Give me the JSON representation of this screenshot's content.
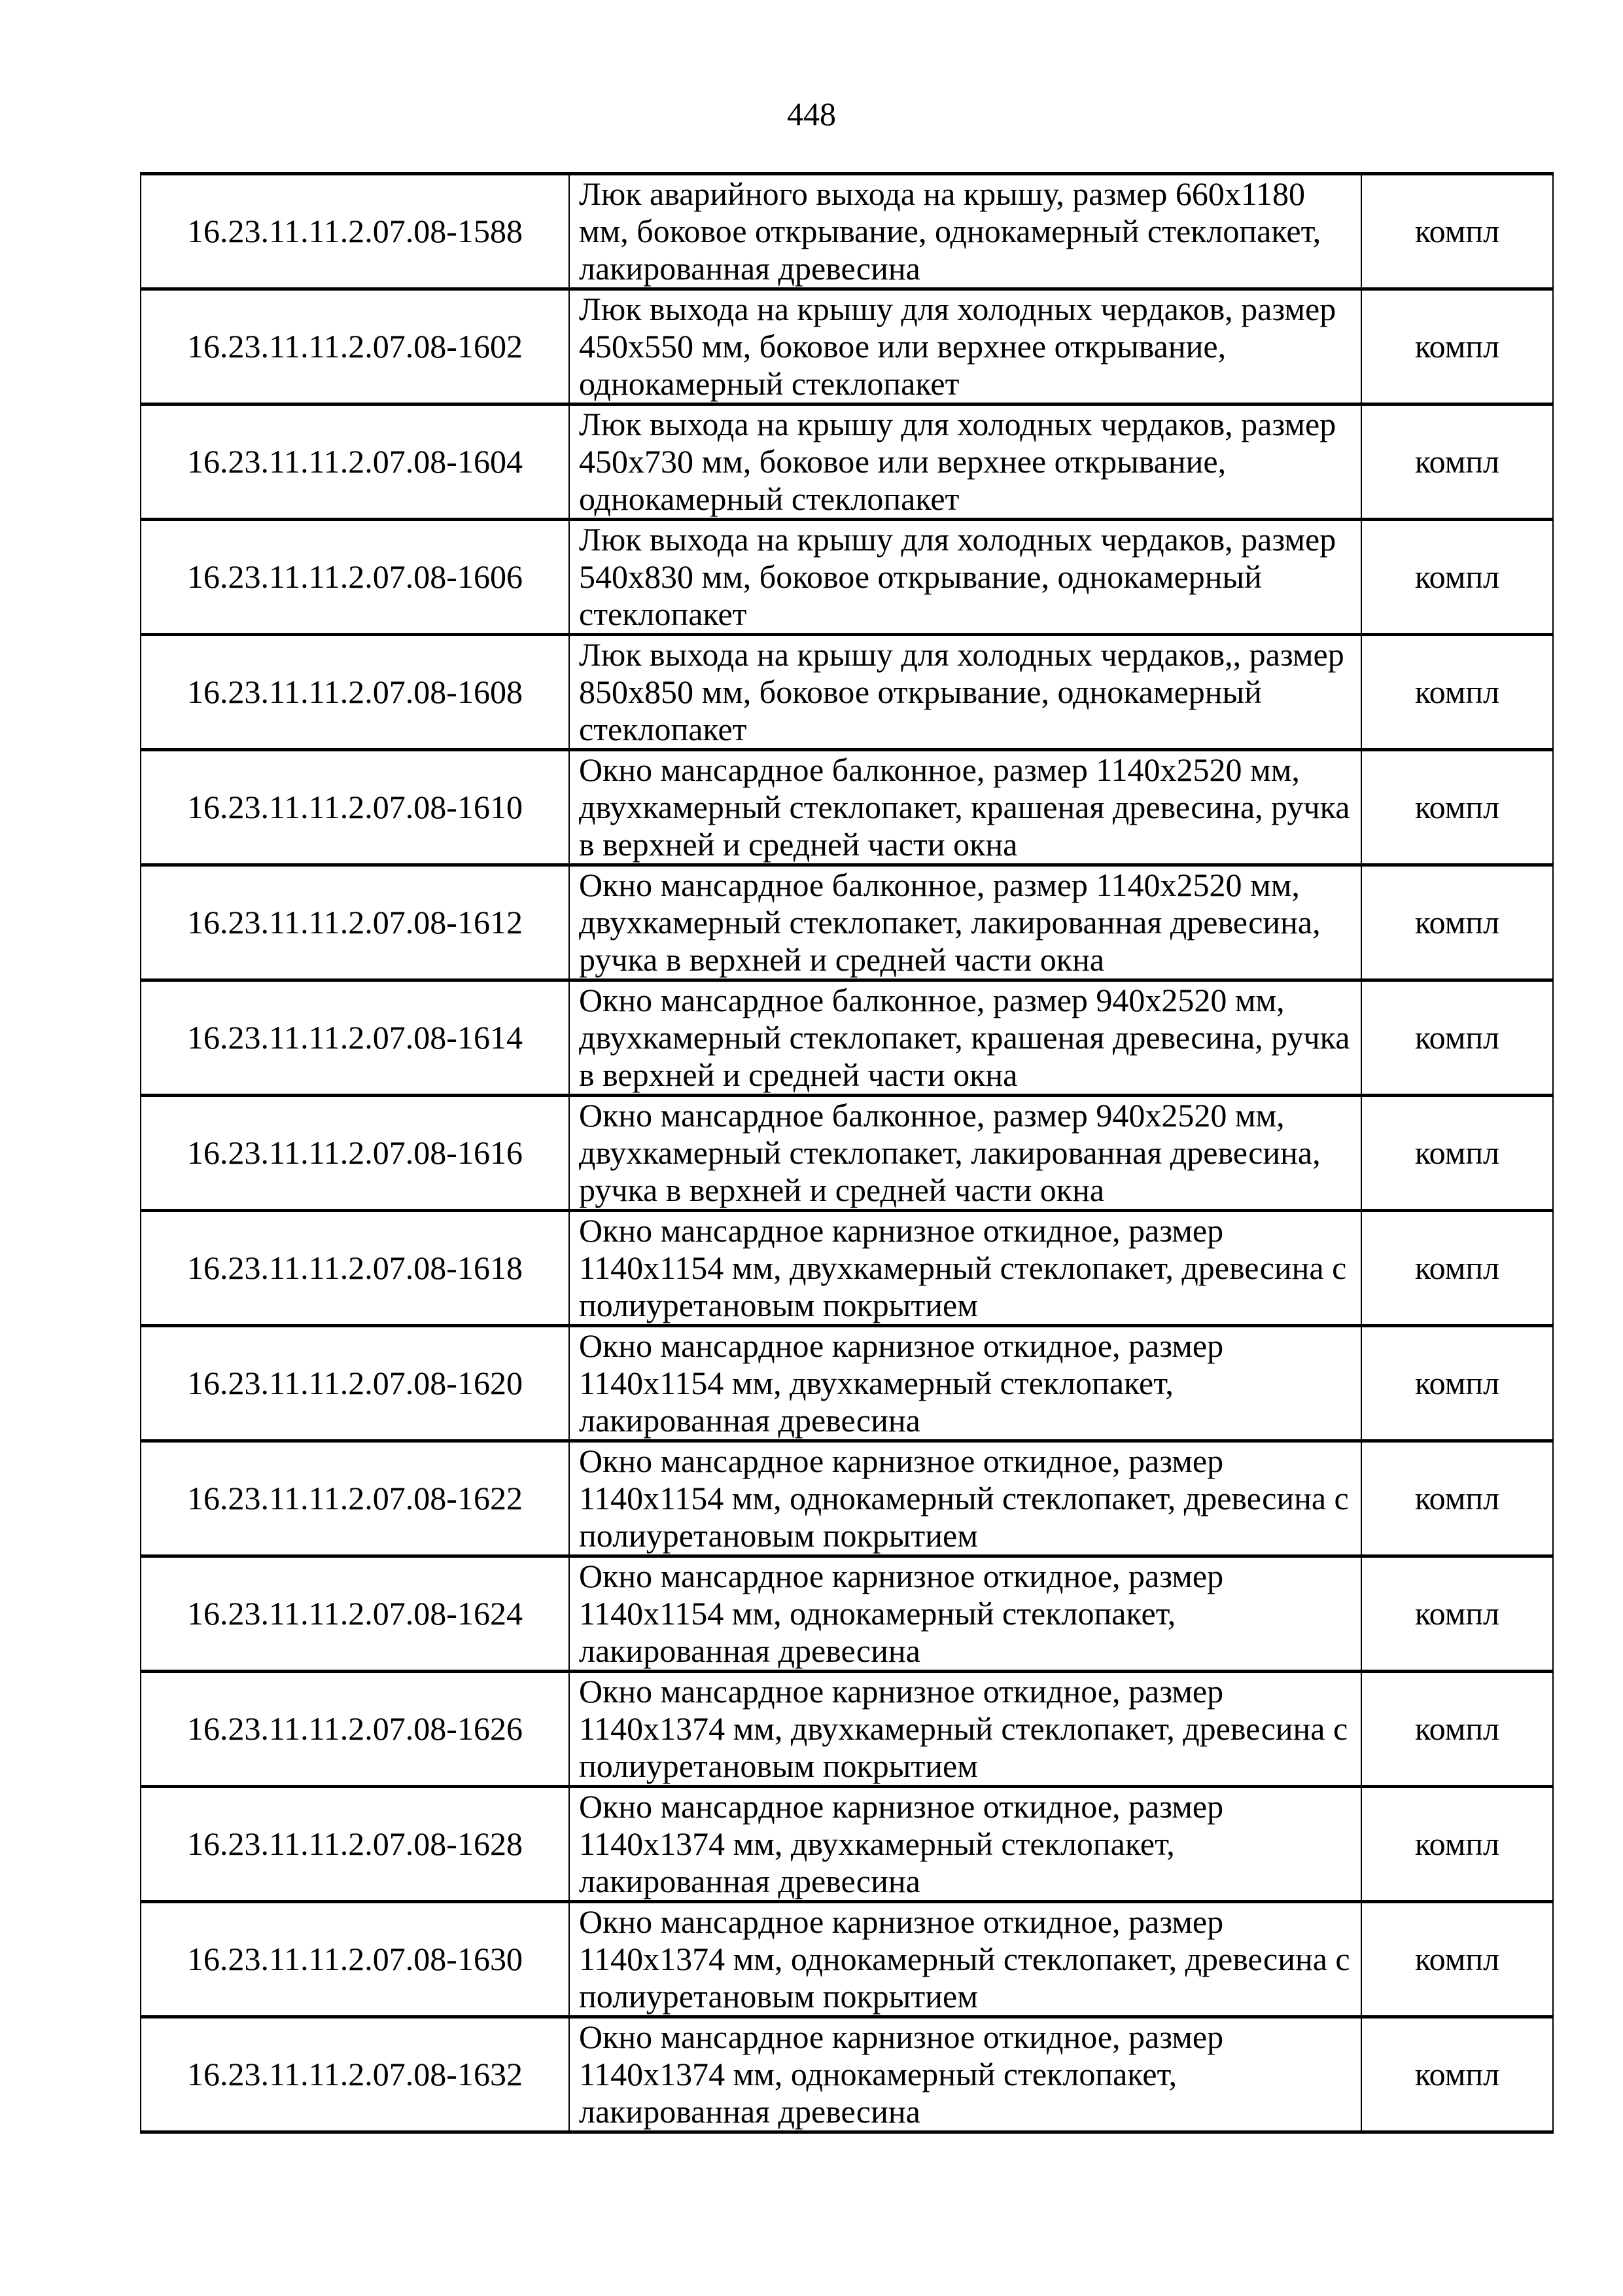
{
  "page_number": "448",
  "rows": [
    {
      "code": "16.23.11.11.2.07.08-1588",
      "desc": "Люк аварийного выхода на крышу, размер 660х1180 мм, боковое открывание, однокамерный стеклопакет, лакированная древесина",
      "unit": "компл"
    },
    {
      "code": "16.23.11.11.2.07.08-1602",
      "desc": "Люк выхода на крышу для холодных чердаков, размер 450х550 мм, боковое или верхнее открывание, однокамерный стеклопакет",
      "unit": "компл"
    },
    {
      "code": "16.23.11.11.2.07.08-1604",
      "desc": "Люк выхода на крышу для холодных чердаков, размер 450х730 мм, боковое или верхнее открывание, однокамерный стеклопакет",
      "unit": "компл"
    },
    {
      "code": "16.23.11.11.2.07.08-1606",
      "desc": "Люк выхода на крышу для холодных чердаков, размер 540х830 мм, боковое открывание, однокамерный стеклопакет",
      "unit": "компл"
    },
    {
      "code": "16.23.11.11.2.07.08-1608",
      "desc": "Люк выхода на крышу для холодных чердаков,, размер 850х850 мм, боковое открывание, однокамерный стеклопакет",
      "unit": "компл"
    },
    {
      "code": "16.23.11.11.2.07.08-1610",
      "desc": "Окно мансардное балконное, размер 1140х2520 мм, двухкамерный стеклопакет, крашеная древесина, ручка в верхней и средней части окна",
      "unit": "компл"
    },
    {
      "code": "16.23.11.11.2.07.08-1612",
      "desc": "Окно мансардное балконное, размер 1140х2520 мм, двухкамерный стеклопакет, лакированная древесина, ручка в верхней и средней части окна",
      "unit": "компл"
    },
    {
      "code": "16.23.11.11.2.07.08-1614",
      "desc": "Окно мансардное балконное, размер 940х2520 мм, двухкамерный стеклопакет, крашеная древесина, ручка в верхней и средней части окна",
      "unit": "компл"
    },
    {
      "code": "16.23.11.11.2.07.08-1616",
      "desc": "Окно мансардное балконное, размер 940х2520 мм, двухкамерный стеклопакет, лакированная древесина, ручка в верхней и средней части окна",
      "unit": "компл"
    },
    {
      "code": "16.23.11.11.2.07.08-1618",
      "desc": "Окно мансардное карнизное откидное, размер 1140х1154 мм, двухкамерный стеклопакет, древесина с полиуретановым покрытием",
      "unit": "компл"
    },
    {
      "code": "16.23.11.11.2.07.08-1620",
      "desc": "Окно мансардное карнизное откидное, размер 1140х1154 мм, двухкамерный стеклопакет, лакированная древесина",
      "unit": "компл"
    },
    {
      "code": "16.23.11.11.2.07.08-1622",
      "desc": "Окно мансардное карнизное откидное, размер 1140х1154 мм, однокамерный стеклопакет, древесина с полиуретановым покрытием",
      "unit": "компл"
    },
    {
      "code": "16.23.11.11.2.07.08-1624",
      "desc": "Окно мансардное карнизное откидное, размер 1140х1154 мм, однокамерный стеклопакет, лакированная древесина",
      "unit": "компл"
    },
    {
      "code": "16.23.11.11.2.07.08-1626",
      "desc": "Окно мансардное карнизное откидное, размер 1140х1374 мм, двухкамерный стеклопакет, древесина с полиуретановым покрытием",
      "unit": "компл"
    },
    {
      "code": "16.23.11.11.2.07.08-1628",
      "desc": "Окно мансардное карнизное откидное, размер 1140х1374 мм, двухкамерный стеклопакет, лакированная древесина",
      "unit": "компл"
    },
    {
      "code": "16.23.11.11.2.07.08-1630",
      "desc": "Окно мансардное карнизное откидное, размер 1140х1374 мм, однокамерный стеклопакет, древесина с полиуретановым покрытием",
      "unit": "компл"
    },
    {
      "code": "16.23.11.11.2.07.08-1632",
      "desc": "Окно мансардное карнизное откидное, размер 1140х1374 мм, однокамерный стеклопакет, лакированная древесина",
      "unit": "компл"
    }
  ]
}
